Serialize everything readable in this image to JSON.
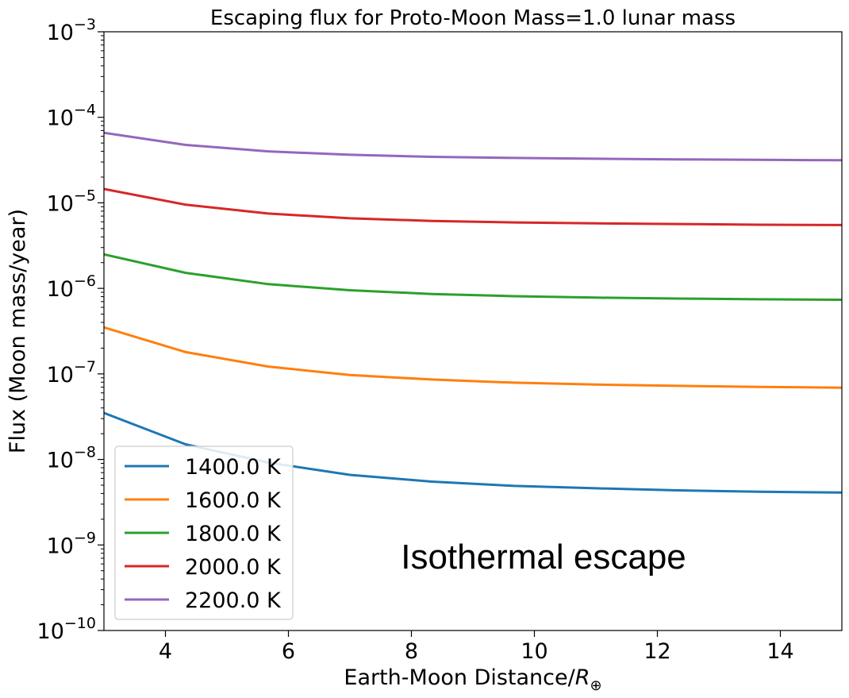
{
  "chart_data": {
    "type": "line",
    "title": "Escaping flux for Proto-Moon Mass=1.0 lunar mass",
    "xlabel": "Earth-Moon Distance/",
    "xlabel_symbol": "R",
    "xlabel_subscript": "⊕",
    "ylabel": "Flux (Moon mass/year)",
    "xlim": [
      3,
      15
    ],
    "ylim_log10": [
      -10,
      -3
    ],
    "yscale": "log",
    "grid": false,
    "legend_position": "lower-left",
    "x_ticks": [
      4,
      6,
      8,
      10,
      12,
      14
    ],
    "y_ticks": [
      {
        "base": "10",
        "exp": "−3",
        "value": -3
      },
      {
        "base": "10",
        "exp": "−4",
        "value": -4
      },
      {
        "base": "10",
        "exp": "−5",
        "value": -5
      },
      {
        "base": "10",
        "exp": "−6",
        "value": -6
      },
      {
        "base": "10",
        "exp": "−7",
        "value": -7
      },
      {
        "base": "10",
        "exp": "−8",
        "value": -8
      },
      {
        "base": "10",
        "exp": "−9",
        "value": -9
      },
      {
        "base": "10",
        "exp": "−10",
        "value": -10
      }
    ],
    "x": [
      3,
      4.33,
      5.67,
      7,
      8.33,
      9.67,
      11,
      12.33,
      13.67,
      15
    ],
    "series": [
      {
        "name": "1400.0 K",
        "color": "#1f77b4",
        "values": [
          3.5e-08,
          1.5e-08,
          9.2e-09,
          6.6e-09,
          5.5e-09,
          4.9e-09,
          4.6e-09,
          4.35e-09,
          4.2e-09,
          4.1e-09
        ]
      },
      {
        "name": "1600.0 K",
        "color": "#ff7f0e",
        "values": [
          3.5e-07,
          1.8e-07,
          1.22e-07,
          9.7e-08,
          8.6e-08,
          7.9e-08,
          7.5e-08,
          7.25e-08,
          7.05e-08,
          6.9e-08
        ]
      },
      {
        "name": "1800.0 K",
        "color": "#2ca02c",
        "values": [
          2.5e-06,
          1.52e-06,
          1.12e-06,
          9.5e-07,
          8.6e-07,
          8.1e-07,
          7.8e-07,
          7.6e-07,
          7.45e-07,
          7.35e-07
        ]
      },
      {
        "name": "2000.0 K",
        "color": "#d62728",
        "values": [
          1.45e-05,
          9.5e-06,
          7.5e-06,
          6.6e-06,
          6.15e-06,
          5.9e-06,
          5.75e-06,
          5.65e-06,
          5.55e-06,
          5.5e-06
        ]
      },
      {
        "name": "2200.0 K",
        "color": "#9467bd",
        "values": [
          6.6e-05,
          4.75e-05,
          4e-05,
          3.65e-05,
          3.45e-05,
          3.35e-05,
          3.28e-05,
          3.22e-05,
          3.18e-05,
          3.15e-05
        ]
      }
    ],
    "annotation": "Isothermal escape"
  }
}
